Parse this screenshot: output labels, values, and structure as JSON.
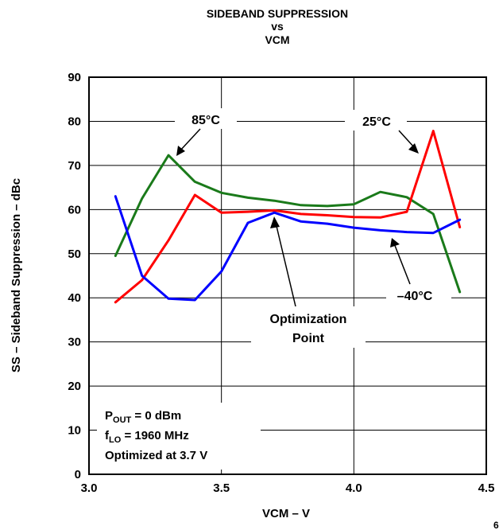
{
  "chart_data": {
    "type": "line",
    "title_lines": [
      "SIDEBAND SUPPRESSION",
      "vs",
      "VCM"
    ],
    "xlabel": "VCM – V",
    "ylabel": "SS – Sideband Suppression – dBc",
    "xlim": [
      3.0,
      4.5
    ],
    "ylim": [
      0,
      90
    ],
    "xticks": [
      3.0,
      3.5,
      4.0,
      4.5
    ],
    "xtick_labels": [
      "3.0",
      "3.5",
      "4.0",
      "4.5"
    ],
    "yticks": [
      0,
      10,
      20,
      30,
      40,
      50,
      60,
      70,
      80,
      90
    ],
    "ytick_labels": [
      "0",
      "10",
      "20",
      "30",
      "40",
      "50",
      "60",
      "70",
      "80",
      "90"
    ],
    "grid": true,
    "series": [
      {
        "name": "85°C",
        "color": "#1a7a1a",
        "x": [
          3.1,
          3.2,
          3.3,
          3.4,
          3.5,
          3.6,
          3.7,
          3.8,
          3.9,
          4.0,
          4.1,
          4.2,
          4.3,
          4.4
        ],
        "y": [
          49.5,
          62.5,
          72.3,
          66.3,
          63.8,
          62.7,
          62.0,
          61.0,
          60.8,
          61.2,
          64.0,
          62.8,
          59.0,
          41.3
        ]
      },
      {
        "name": "25°C",
        "color": "#ff0000",
        "x": [
          3.1,
          3.2,
          3.3,
          3.4,
          3.5,
          3.6,
          3.7,
          3.8,
          3.9,
          4.0,
          4.1,
          4.2,
          4.3,
          4.4
        ],
        "y": [
          39.0,
          44.0,
          53.0,
          63.3,
          59.3,
          59.5,
          59.8,
          59.0,
          58.7,
          58.3,
          58.2,
          59.5,
          77.8,
          56.0
        ]
      },
      {
        "name": "–40°C",
        "color": "#0000ff",
        "x": [
          3.1,
          3.2,
          3.3,
          3.4,
          3.5,
          3.6,
          3.7,
          3.8,
          3.9,
          4.0,
          4.1,
          4.2,
          4.3,
          4.4
        ],
        "y": [
          63.0,
          45.0,
          39.8,
          39.5,
          46.0,
          57.0,
          59.3,
          57.3,
          56.8,
          55.9,
          55.3,
          54.9,
          54.7,
          57.7
        ]
      }
    ],
    "annotations": {
      "label_85": "85°C",
      "label_25": "25°C",
      "label_m40": "–40°C",
      "opt_line1": "Optimization",
      "opt_line2": "Point"
    },
    "conditions": {
      "pout_main": "P",
      "pout_sub": "OUT",
      "pout_rest": " = 0 dBm",
      "flo_main": "f",
      "flo_sub": "LO",
      "flo_rest": " = 1960 MHz",
      "optimized": "Optimized at 3.7 V"
    },
    "corner_mark": "6"
  }
}
